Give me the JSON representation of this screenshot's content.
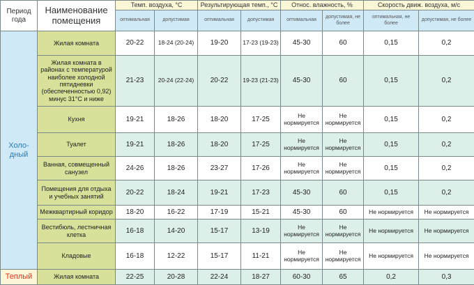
{
  "header": {
    "period": "Период года",
    "name": "Наименование помещения",
    "groups": [
      "Темп. воздуха, °C",
      "Результирующая темп., °C",
      "Относ. влажность, %",
      "Скорость движ. воздуха, м/с"
    ],
    "sub": [
      "оптимальная",
      "допустимая",
      "оптимальная",
      "допустимая",
      "оптимальная",
      "допустимая, не более",
      "оптимальная, не более",
      "допустимая, не более"
    ]
  },
  "periods": {
    "cold": "Холо-дный",
    "warm": "Теплый"
  },
  "rows": [
    {
      "name": "Жилая комната",
      "v": [
        "20-22",
        "18-24 (20-24)",
        "19-20",
        "17-23 (19-23)",
        "45-30",
        "60",
        "0,15",
        "0,2"
      ]
    },
    {
      "name": "Жилая комната в районах с температурой наиболее холодной пятидневки (обеспеченностью 0,92) минус 31°С и ниже",
      "v": [
        "21-23",
        "20-24 (22-24)",
        "20-22",
        "19-23 (21-23)",
        "45-30",
        "60",
        "0,15",
        "0,2"
      ]
    },
    {
      "name": "Кухня",
      "v": [
        "19-21",
        "18-26",
        "18-20",
        "17-25",
        "Не нормируется",
        "Не нормируется",
        "0,15",
        "0,2"
      ]
    },
    {
      "name": "Туалет",
      "v": [
        "19-21",
        "18-26",
        "18-20",
        "17-25",
        "Не нормируется",
        "Не нормируется",
        "0,15",
        "0,2"
      ]
    },
    {
      "name": "Ванная, совмещенный санузел",
      "v": [
        "24-26",
        "18-26",
        "23-27",
        "17-26",
        "Не нормируется",
        "Не нормируется",
        "0,15",
        "0,2"
      ]
    },
    {
      "name": "Помещения для отдыха и учебных занятий",
      "v": [
        "20-22",
        "18-24",
        "19-21",
        "17-23",
        "45-30",
        "60",
        "0,15",
        "0,2"
      ]
    },
    {
      "name": "Межквартирный коридор",
      "v": [
        "18-20",
        "16-22",
        "17-19",
        "15-21",
        "45-30",
        "60",
        "Не нормируется",
        "Не нормируется"
      ]
    },
    {
      "name": "Вестибюль, лестничная клетка",
      "v": [
        "16-18",
        "14-20",
        "15-17",
        "13-19",
        "Не нормируется",
        "Не нормируется",
        "Не нормируется",
        "Не нормируется"
      ]
    },
    {
      "name": "Кладовые",
      "v": [
        "16-18",
        "12-22",
        "15-17",
        "11-21",
        "Не нормируется",
        "Не нормируется",
        "Не нормируется",
        "Не нормируется"
      ]
    },
    {
      "name": "Жилая комната",
      "v": [
        "22-25",
        "20-28",
        "22-24",
        "18-27",
        "60-30",
        "65",
        "0,2",
        "0,3"
      ]
    }
  ]
}
